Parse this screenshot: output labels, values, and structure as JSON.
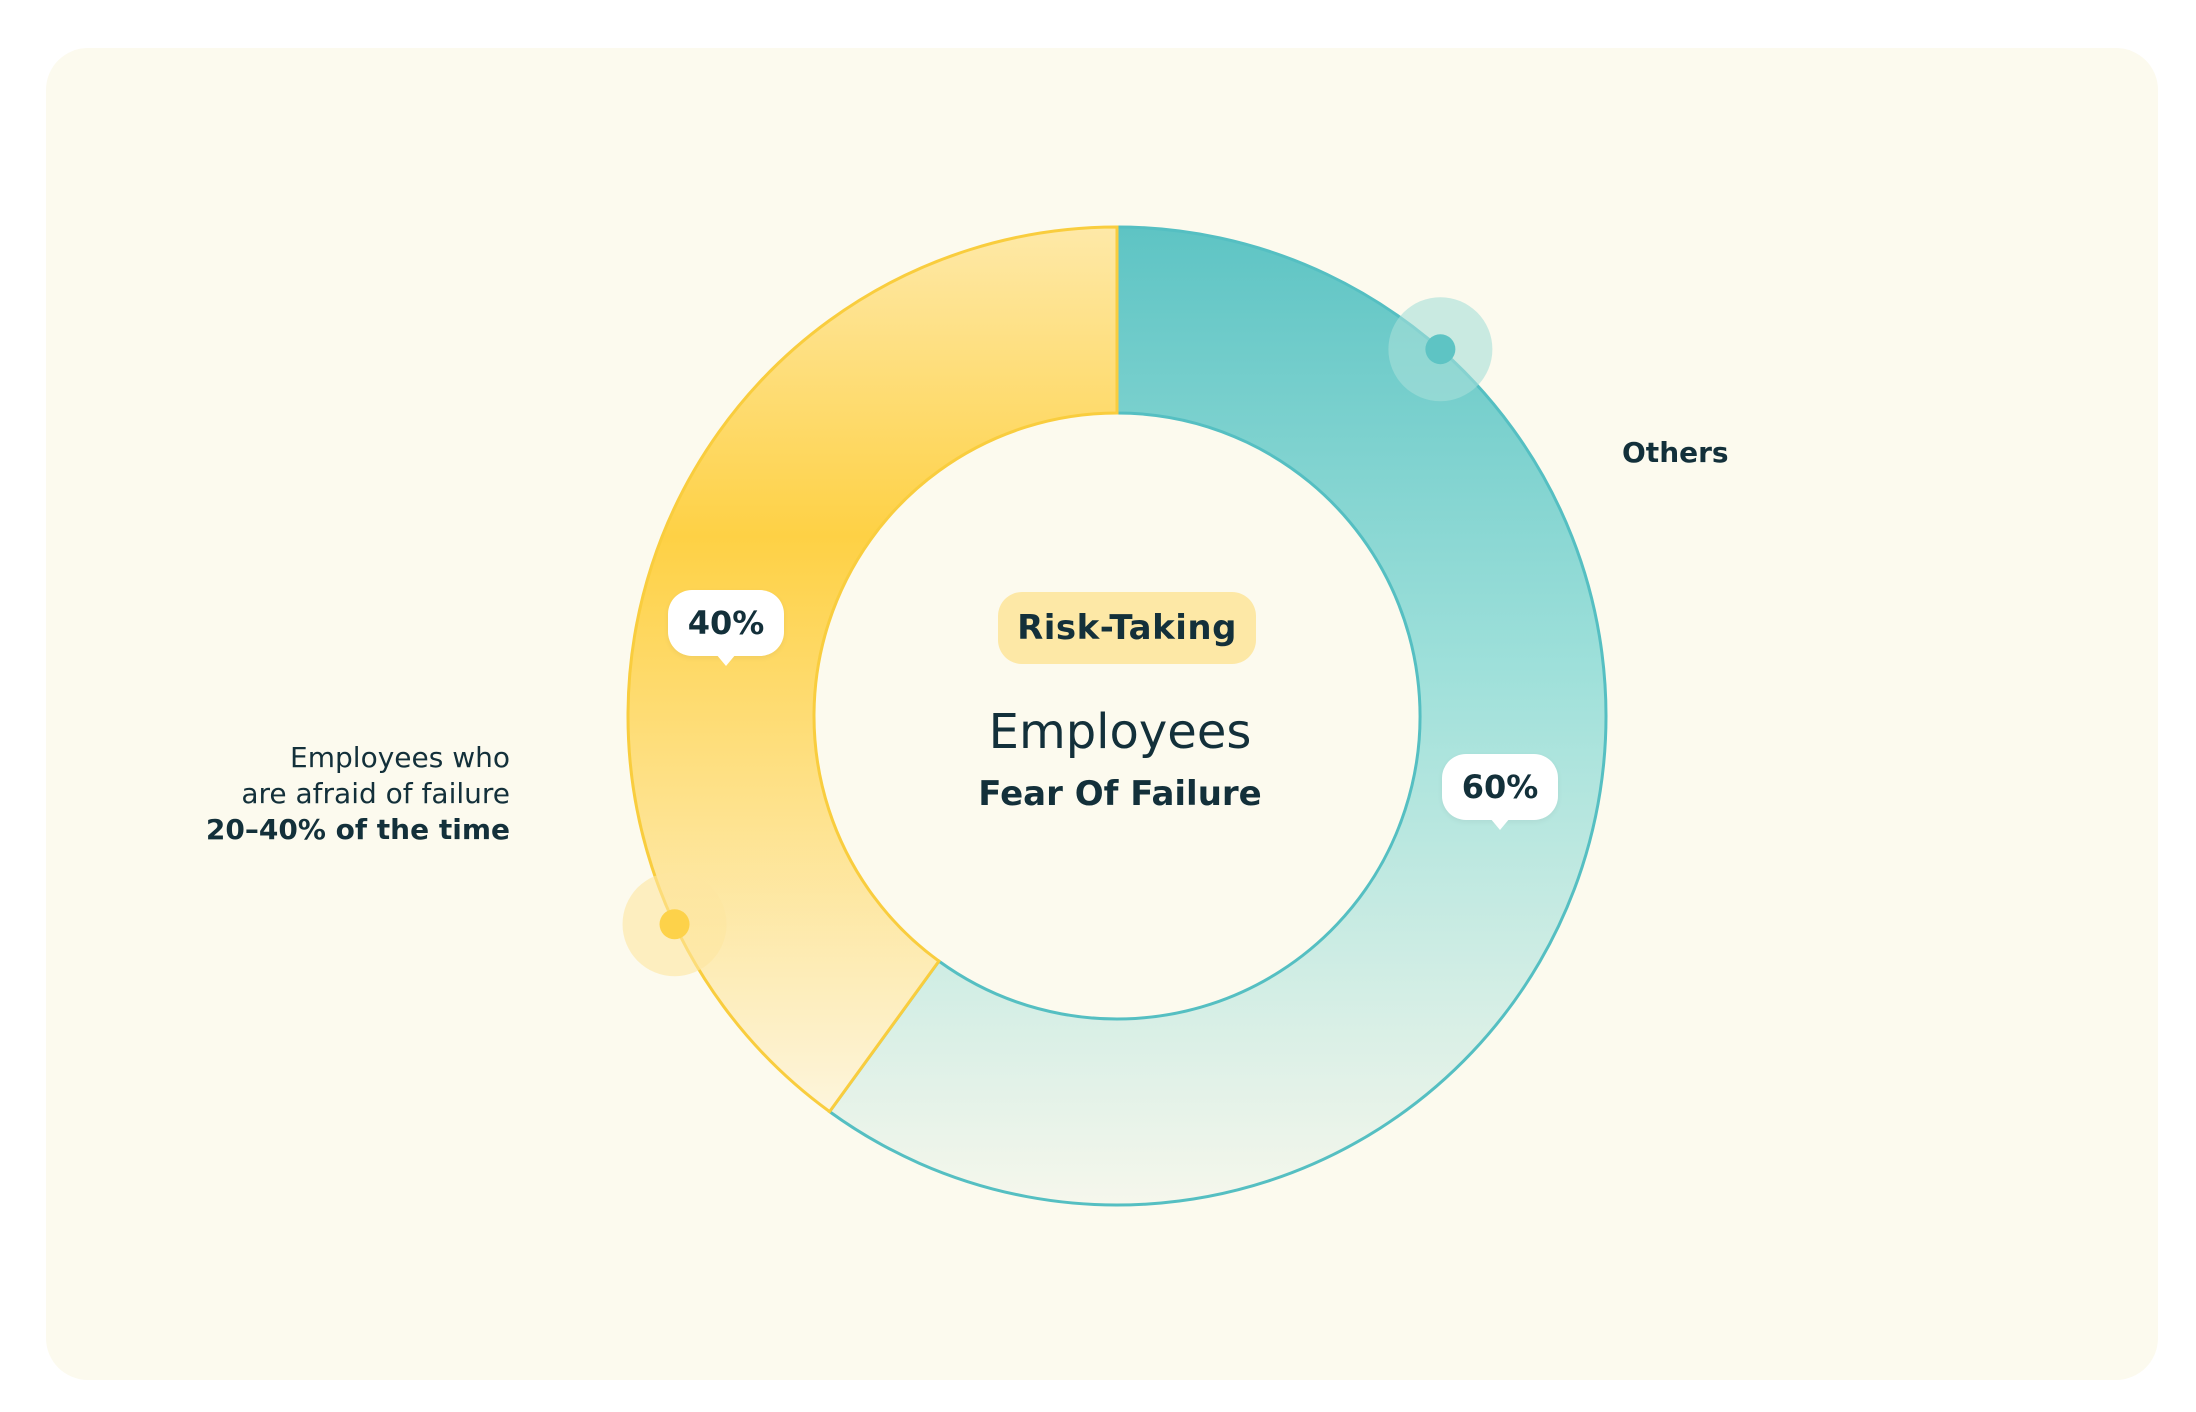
{
  "chart_data": {
    "type": "pie",
    "donut": true,
    "title": "Employees",
    "subtitle": "Fear Of Failure",
    "tag": "Risk-Taking",
    "slices": [
      {
        "name": "Employees who are afraid of failure 20–40% of the time",
        "value": 40,
        "label": "40%",
        "color": "#fdd24a"
      },
      {
        "name": "Others",
        "value": 60,
        "label": "60%",
        "color": "#5ec4c4"
      }
    ],
    "legend": {
      "afraid": {
        "line1": "Employees who",
        "line2": "are afraid of failure",
        "line3": "20–40% of the time"
      },
      "others": "Others"
    }
  }
}
